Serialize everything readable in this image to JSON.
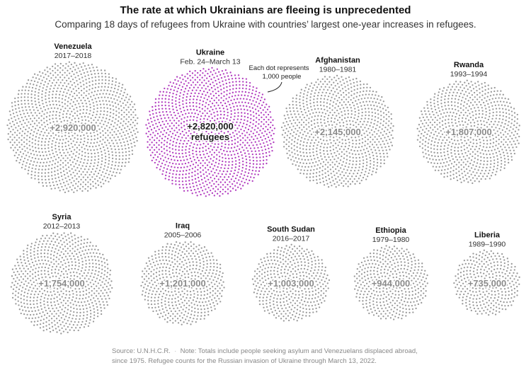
{
  "title": "The rate at which Ukrainians are fleeing is unprecedented",
  "subtitle": "Comparing 18 days of refugees from Ukraine with countries’ largest one-year increases in refugees.",
  "annotation": [
    "Each dot represents",
    "1,000 people"
  ],
  "footer": {
    "source": "Source: U.N.H.C.R.",
    "note": "Note: Totals include people seeking asylum and Venezuelans displaced abroad, since 1975. Refugee counts for the Russian invasion of Ukraine through March 13, 2022."
  },
  "colors": {
    "grey_dot": "#9a9a9a",
    "ukraine_dot": "#b13bbf"
  },
  "chart_data": {
    "type": "dot-cluster",
    "unit_per_dot": 1000,
    "items": [
      {
        "country": "Venezuela",
        "period": "2017–2018",
        "value": 2920000,
        "label": "+2,920,000",
        "highlight": false
      },
      {
        "country": "Ukraine",
        "period": "Feb. 24–March 13",
        "value": 2820000,
        "label": "+2,820,000",
        "label2": "refugees",
        "highlight": true
      },
      {
        "country": "Afghanistan",
        "period": "1980–1981",
        "value": 2145000,
        "label": "+2,145,000",
        "highlight": false
      },
      {
        "country": "Rwanda",
        "period": "1993–1994",
        "value": 1807000,
        "label": "+1,807,000",
        "highlight": false
      },
      {
        "country": "Syria",
        "period": "2012–2013",
        "value": 1754000,
        "label": "+1,754,000",
        "highlight": false
      },
      {
        "country": "Iraq",
        "period": "2005–2006",
        "value": 1201000,
        "label": "+1,201,000",
        "highlight": false
      },
      {
        "country": "South Sudan",
        "period": "2016–2017",
        "value": 1003000,
        "label": "+1,003,000",
        "highlight": false
      },
      {
        "country": "Ethiopia",
        "period": "1979–1980",
        "value": 944000,
        "label": "+944,000",
        "highlight": false
      },
      {
        "country": "Liberia",
        "period": "1989–1990",
        "value": 735000,
        "label": "+735,000",
        "highlight": false
      }
    ]
  }
}
